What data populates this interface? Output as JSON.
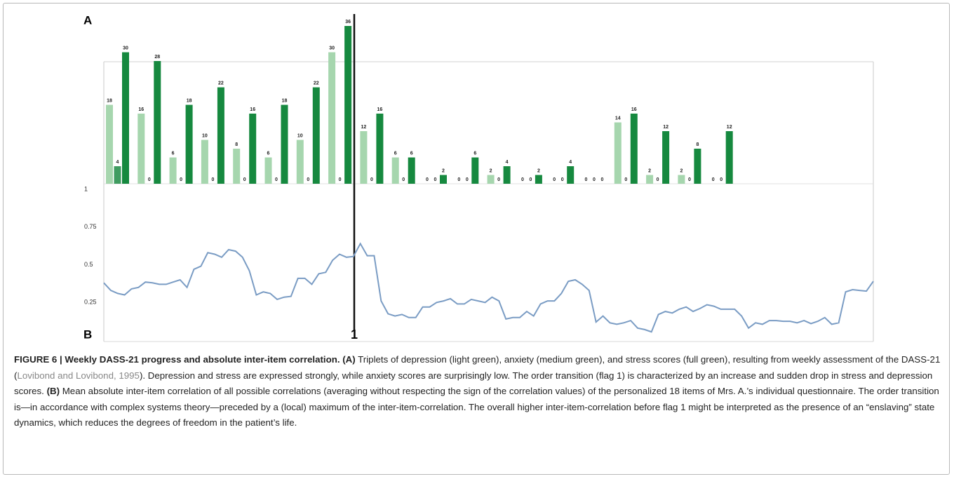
{
  "chart_data": [
    {
      "type": "grouped-bar",
      "label": "A",
      "series": [
        {
          "color": "#a6d6ae",
          "values": [
            18,
            16,
            6,
            10,
            8,
            6,
            10,
            30,
            12,
            6,
            0,
            0,
            2,
            0,
            0,
            0,
            14,
            2,
            2,
            0
          ]
        },
        {
          "color": "#3f9c60",
          "values": [
            4,
            0,
            0,
            0,
            0,
            0,
            0,
            0,
            0,
            0,
            0,
            0,
            0,
            0,
            0,
            0,
            0,
            0,
            0,
            0
          ]
        },
        {
          "color": "#16893f",
          "values": [
            30,
            28,
            18,
            22,
            16,
            18,
            22,
            36,
            16,
            6,
            2,
            6,
            4,
            2,
            4,
            0,
            16,
            12,
            8,
            12
          ]
        }
      ]
    },
    {
      "type": "line",
      "label": "B",
      "flag": "1",
      "color": "#7a9cc4",
      "ylim": [
        0,
        1
      ],
      "yticks": [
        0.25,
        0.5,
        0.75,
        1
      ],
      "values": [
        0.38,
        0.33,
        0.31,
        0.3,
        0.34,
        0.35,
        0.385,
        0.38,
        0.37,
        0.37,
        0.385,
        0.4,
        0.35,
        0.47,
        0.49,
        0.58,
        0.57,
        0.55,
        0.6,
        0.59,
        0.55,
        0.46,
        0.3,
        0.32,
        0.31,
        0.27,
        0.285,
        0.29,
        0.41,
        0.41,
        0.37,
        0.44,
        0.45,
        0.53,
        0.57,
        0.55,
        0.555,
        0.64,
        0.56,
        0.56,
        0.26,
        0.175,
        0.16,
        0.17,
        0.15,
        0.15,
        0.22,
        0.22,
        0.25,
        0.26,
        0.275,
        0.24,
        0.24,
        0.27,
        0.26,
        0.25,
        0.285,
        0.26,
        0.14,
        0.15,
        0.15,
        0.19,
        0.16,
        0.24,
        0.26,
        0.26,
        0.31,
        0.39,
        0.4,
        0.37,
        0.33,
        0.12,
        0.16,
        0.115,
        0.105,
        0.115,
        0.13,
        0.08,
        0.07,
        0.055,
        0.17,
        0.19,
        0.18,
        0.205,
        0.22,
        0.19,
        0.21,
        0.235,
        0.225,
        0.205,
        0.205,
        0.205,
        0.16,
        0.08,
        0.115,
        0.105,
        0.13,
        0.13,
        0.125,
        0.125,
        0.115,
        0.13,
        0.11,
        0.125,
        0.15,
        0.105,
        0.115,
        0.32,
        0.335,
        0.33,
        0.325,
        0.39
      ]
    }
  ],
  "caption": [
    {
      "text": "FIGURE 6 | Weekly DASS-21 progress and absolute inter-item correlation. (A)",
      "bold": true
    },
    {
      "text": " Triplets of depression (light green), anxiety (medium green), and stress scores (full green), resulting from weekly assessment of the DASS-21 ("
    },
    {
      "text": "Lovibond and Lovibond, 1995",
      "cite": true
    },
    {
      "text": "). Depression and stress are expressed strongly, while anxiety scores are surprisingly low. The order transition (flag 1) is characterized by an increase and sudden drop in stress and depression scores. "
    },
    {
      "text": "(B)",
      "bold": true
    },
    {
      "text": " Mean absolute inter-item correlation of all possible correlations (averaging without respecting the sign of the correlation values) of the personalized 18 items of Mrs. A.’s individual questionnaire. The order transition is—in accordance with complex systems theory—preceded by a (local) maximum of the inter-item-correlation. The overall higher inter-item-correlation before flag 1 might be interpreted as the presence of an “enslaving” state dynamics, which reduces the degrees of freedom in the patient’s life."
    }
  ]
}
